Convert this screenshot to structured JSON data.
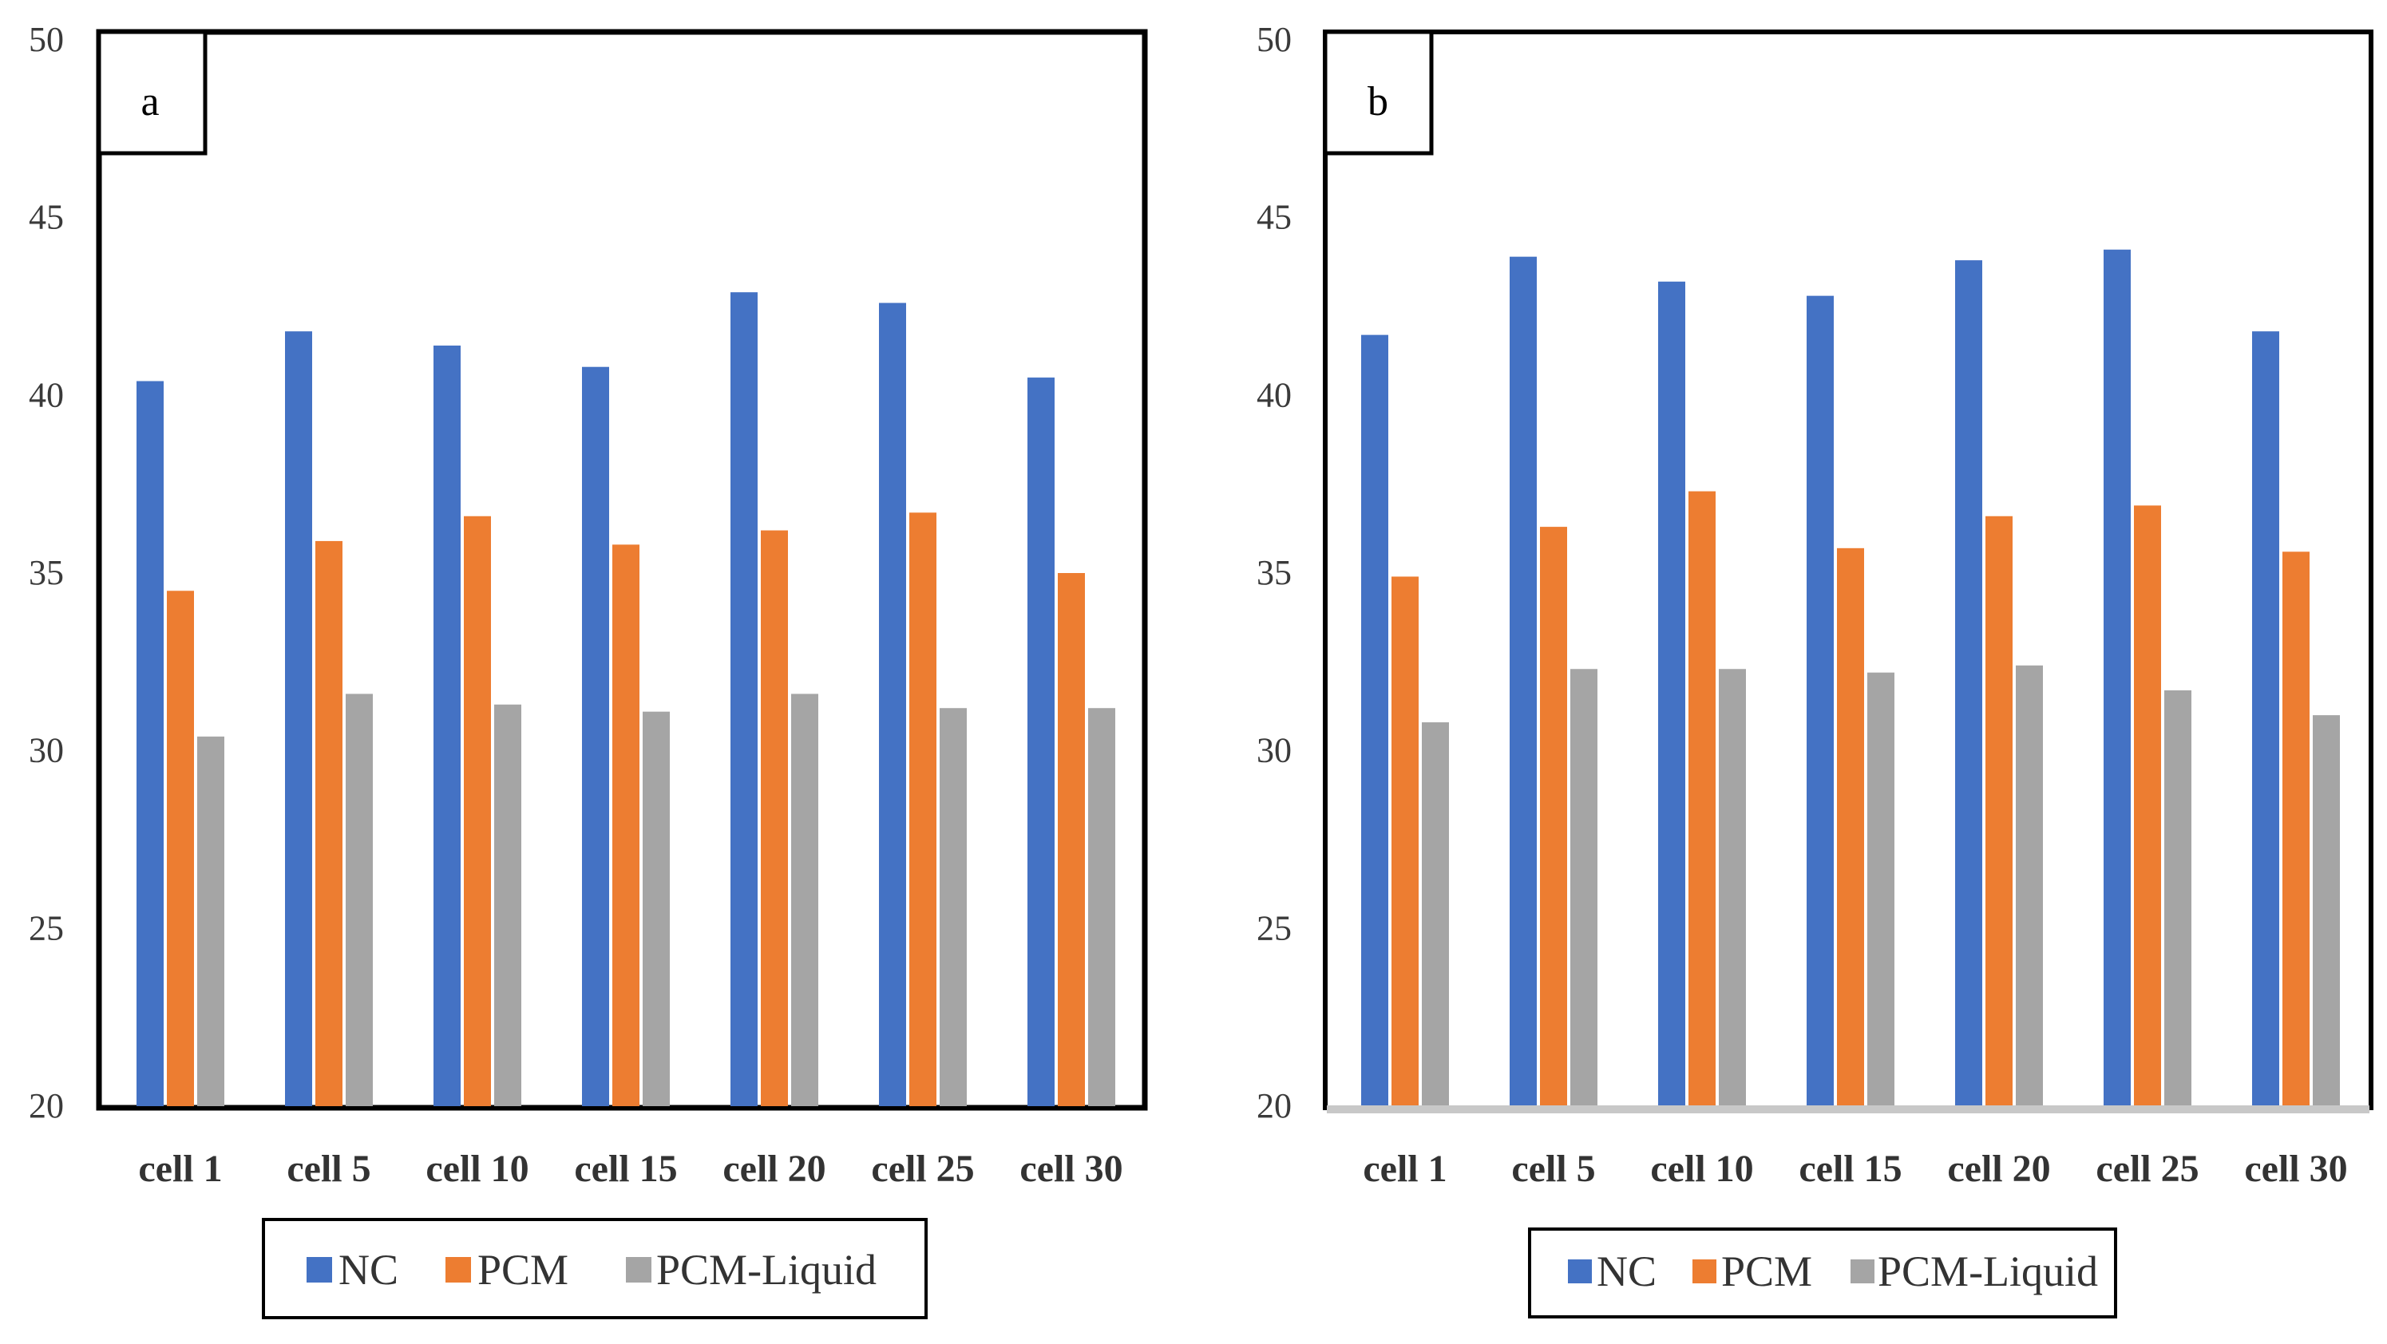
{
  "figure": {
    "series_colors": {
      "NC": "#4472C4",
      "PCM": "#ED7D31",
      "PCM-Liquid": "#A5A5A5"
    }
  },
  "chart_data": [
    {
      "type": "bar",
      "panel_label": "a",
      "categories": [
        "cell 1",
        "cell 5",
        "cell 10",
        "cell 15",
        "cell 20",
        "cell 25",
        "cell 30"
      ],
      "series": [
        {
          "name": "NC",
          "color": "#4472C4",
          "values": [
            40.4,
            41.8,
            41.4,
            40.8,
            42.9,
            42.6,
            40.5
          ]
        },
        {
          "name": "PCM",
          "color": "#ED7D31",
          "values": [
            34.5,
            35.9,
            36.6,
            35.8,
            36.2,
            36.7,
            35.0
          ]
        },
        {
          "name": "PCM-Liquid",
          "color": "#A5A5A5",
          "values": [
            30.4,
            31.6,
            31.3,
            31.1,
            31.6,
            31.2,
            31.2
          ]
        }
      ],
      "yticks": [
        "20",
        "25",
        "30",
        "35",
        "40",
        "45",
        "50"
      ],
      "ylim": [
        20,
        50
      ],
      "title": "",
      "xlabel": "",
      "ylabel": "",
      "legend_position": "bottom-center",
      "grid": false
    },
    {
      "type": "bar",
      "panel_label": "b",
      "categories": [
        "cell 1",
        "cell 5",
        "cell 10",
        "cell 15",
        "cell 20",
        "cell 25",
        "cell 30"
      ],
      "series": [
        {
          "name": "NC",
          "color": "#4472C4",
          "values": [
            41.7,
            43.9,
            43.2,
            42.8,
            43.8,
            44.1,
            41.8
          ]
        },
        {
          "name": "PCM",
          "color": "#ED7D31",
          "values": [
            34.9,
            36.3,
            37.3,
            35.7,
            36.6,
            36.9,
            35.6
          ]
        },
        {
          "name": "PCM-Liquid",
          "color": "#A5A5A5",
          "values": [
            30.8,
            32.3,
            32.3,
            32.2,
            32.4,
            31.7,
            31.0
          ]
        }
      ],
      "yticks": [
        "20",
        "25",
        "30",
        "35",
        "40",
        "45",
        "50"
      ],
      "ylim": [
        20,
        50
      ],
      "title": "",
      "xlabel": "",
      "ylabel": "",
      "legend_position": "bottom-center",
      "grid": false
    }
  ]
}
